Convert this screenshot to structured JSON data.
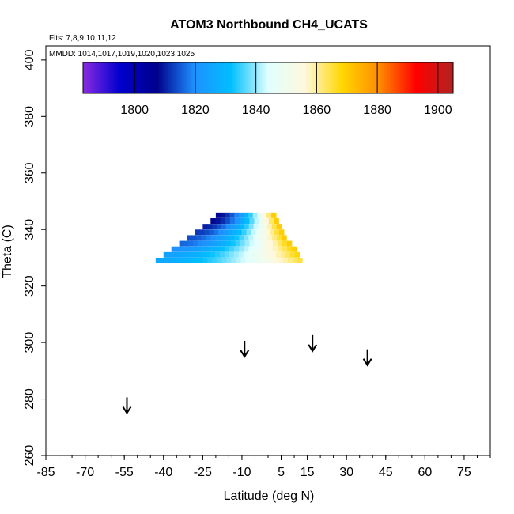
{
  "chart_data": {
    "type": "heatmap",
    "title": "ATOM3 Northbound CH4_UCATS",
    "annotations": {
      "flights": "Flts: 7,8,9,10,11,12",
      "dates": "MMDD: 1014,1017,1019,1020,1023,1025"
    },
    "xlabel": "Latitude (deg N)",
    "ylabel": "Theta (C)",
    "xlim": [
      -85,
      85
    ],
    "ylim": [
      260,
      405
    ],
    "x_ticks": [
      -85,
      -70,
      -55,
      -40,
      -25,
      -10,
      5,
      15,
      30,
      45,
      60,
      75
    ],
    "y_ticks": [
      260,
      280,
      300,
      320,
      340,
      360,
      380,
      400
    ],
    "colorbar": {
      "min": 1783,
      "max": 1905,
      "ticks": [
        1800,
        1820,
        1840,
        1860,
        1880,
        1900
      ],
      "colors": [
        "#8a2be2",
        "#0000cd",
        "#00008b",
        "#1e90ff",
        "#00bfff",
        "#e0ffff",
        "#fff8dc",
        "#ffd700",
        "#ff8c00",
        "#ff0000",
        "#b22222"
      ]
    },
    "cells": [
      {
        "theta": 345,
        "lat_start": -20,
        "lat_end": 3,
        "ch4_start": 1808,
        "ch4_end": 1870
      },
      {
        "theta": 343,
        "lat_start": -22,
        "lat_end": 4,
        "ch4_start": 1808,
        "ch4_end": 1870
      },
      {
        "theta": 341,
        "lat_start": -25,
        "lat_end": 5,
        "ch4_start": 1810,
        "ch4_end": 1870
      },
      {
        "theta": 339,
        "lat_start": -28,
        "lat_end": 6,
        "ch4_start": 1812,
        "ch4_end": 1870
      },
      {
        "theta": 337,
        "lat_start": -31,
        "lat_end": 7,
        "ch4_start": 1814,
        "ch4_end": 1870
      },
      {
        "theta": 335,
        "lat_start": -34,
        "lat_end": 9,
        "ch4_start": 1816,
        "ch4_end": 1870
      },
      {
        "theta": 333,
        "lat_start": -37,
        "lat_end": 11,
        "ch4_start": 1820,
        "ch4_end": 1870
      },
      {
        "theta": 331,
        "lat_start": -40,
        "lat_end": 12,
        "ch4_start": 1824,
        "ch4_end": 1868
      },
      {
        "theta": 329,
        "lat_start": -43,
        "lat_end": 13,
        "ch4_start": 1826,
        "ch4_end": 1865
      }
    ],
    "arrows": [
      {
        "lat": -54,
        "theta": 275
      },
      {
        "lat": -9,
        "theta": 295
      },
      {
        "lat": 17,
        "theta": 297
      },
      {
        "lat": 38,
        "theta": 292
      }
    ]
  }
}
